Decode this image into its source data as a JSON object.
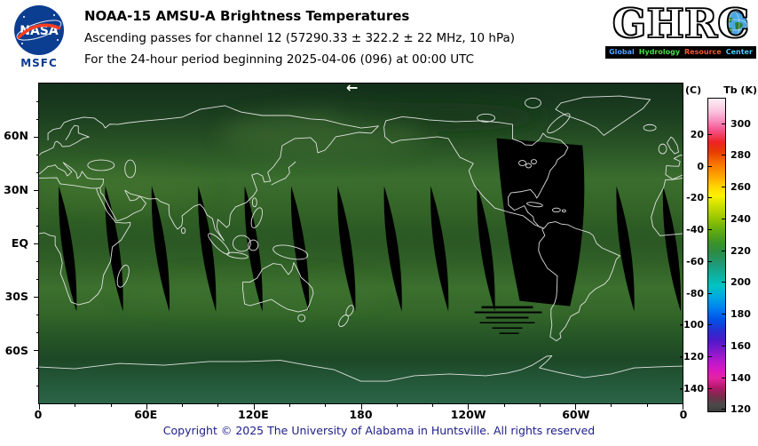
{
  "header": {
    "nasa": {
      "wordmark": "NASA",
      "center_label": "MSFC"
    },
    "title": "NOAA-15 AMSU-A Brightness Temperatures",
    "subtitle": "Ascending passes for channel 12 (57290.33 ± 322.2 ± 22 MHz, 10 hPa)",
    "period_line": "For the 24-hour period beginning 2025-04-06 (096) at 00:00 UTC",
    "ghrc": {
      "wordmark": "GHRC",
      "tagline_words": [
        {
          "text": "Global",
          "color": "#4da3ff"
        },
        {
          "text": "Hydrology",
          "color": "#44dd44"
        },
        {
          "text": "Resource",
          "color": "#ff5533"
        },
        {
          "text": "Center",
          "color": "#44ccff"
        }
      ]
    }
  },
  "map": {
    "direction_arrow": "←",
    "lat_labels": [
      "60N",
      "30N",
      "EQ",
      "30S",
      "60S"
    ],
    "lon_labels": [
      "0",
      "60E",
      "120E",
      "180",
      "120W",
      "60W",
      "0"
    ],
    "gap_color": "#000000",
    "gap_center_lons_deg": [
      16,
      42,
      68,
      94,
      120,
      146,
      172,
      198,
      224,
      250,
      328,
      354
    ],
    "wide_gap": {
      "lon_start_deg": 256,
      "lon_end_deg": 304
    },
    "stripe_rects": [
      [
        500,
        252,
        58,
        2.5
      ],
      [
        492,
        258,
        76,
        2
      ],
      [
        505,
        264,
        48,
        2
      ],
      [
        498,
        270,
        62,
        1.5
      ],
      [
        512,
        276,
        34,
        1.5
      ],
      [
        520,
        282,
        22,
        1.5
      ]
    ]
  },
  "colorbar": {
    "left_unit": "(C)",
    "right_unit": "Tb (K)",
    "kelvin_ticks": [
      300,
      280,
      260,
      240,
      220,
      200,
      180,
      160,
      140,
      120
    ],
    "celsius_ticks": [
      20,
      0,
      -20,
      -40,
      -60,
      -80,
      -100,
      -120,
      -140
    ],
    "domain_top_k": 316,
    "domain_bottom_k": 118
  },
  "footer": {
    "copyright": "Copyright © 2025 The University of Alabama in Huntsville. All rights reserved"
  }
}
